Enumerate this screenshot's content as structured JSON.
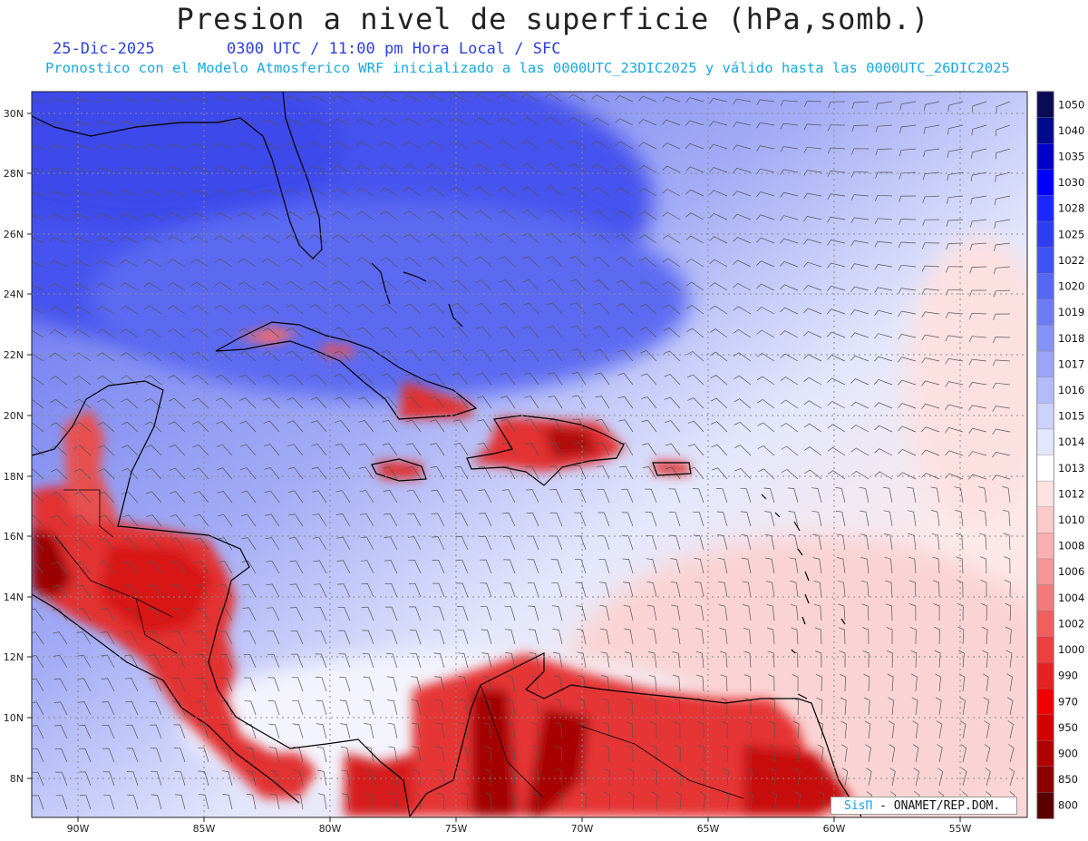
{
  "header": {
    "title": "Presion a nivel de superficie (hPa,somb.)",
    "date": "25-Dic-2025",
    "time_info": "0300 UTC / 11:00 pm Hora Local / SFC",
    "model_info": "Pronostico con el Modelo Atmosferico WRF inicializado a las 0000UTC_23DIC2025 y válido hasta las  0000UTC_26DIC2025"
  },
  "axes": {
    "lat_labels": [
      "30N",
      "28N",
      "26N",
      "24N",
      "22N",
      "20N",
      "18N",
      "16N",
      "14N",
      "12N",
      "10N",
      "8N"
    ],
    "lon_labels": [
      "90W",
      "85W",
      "80W",
      "75W",
      "70W",
      "65W",
      "60W",
      "55W"
    ]
  },
  "colorbar": {
    "levels": [
      "1050",
      "1040",
      "1035",
      "1030",
      "1028",
      "1025",
      "1022",
      "1020",
      "1019",
      "1018",
      "1017",
      "1016",
      "1015",
      "1014",
      "1013",
      "1012",
      "1010",
      "1008",
      "1006",
      "1004",
      "1002",
      "1000",
      "990",
      "970",
      "950",
      "900",
      "850",
      "800"
    ],
    "colors": [
      "#0a0a55",
      "#000a8c",
      "#0000c8",
      "#0000ff",
      "#1a28ff",
      "#2d3df0",
      "#3f52f5",
      "#5568f5",
      "#6c7cf5",
      "#8592f7",
      "#9aa5f8",
      "#b3bbfa",
      "#cdd2fb",
      "#e3e6fd",
      "#ffffff",
      "#ffe3e3",
      "#fccaca",
      "#f9b0b0",
      "#f69696",
      "#f37a7a",
      "#f05e5e",
      "#ec4040",
      "#e52222",
      "#f00000",
      "#d40000",
      "#b00000",
      "#8a0000",
      "#5a0000"
    ]
  },
  "credit": {
    "brand": "SisΠ",
    "text": " - ONAMET/REP.DOM."
  }
}
